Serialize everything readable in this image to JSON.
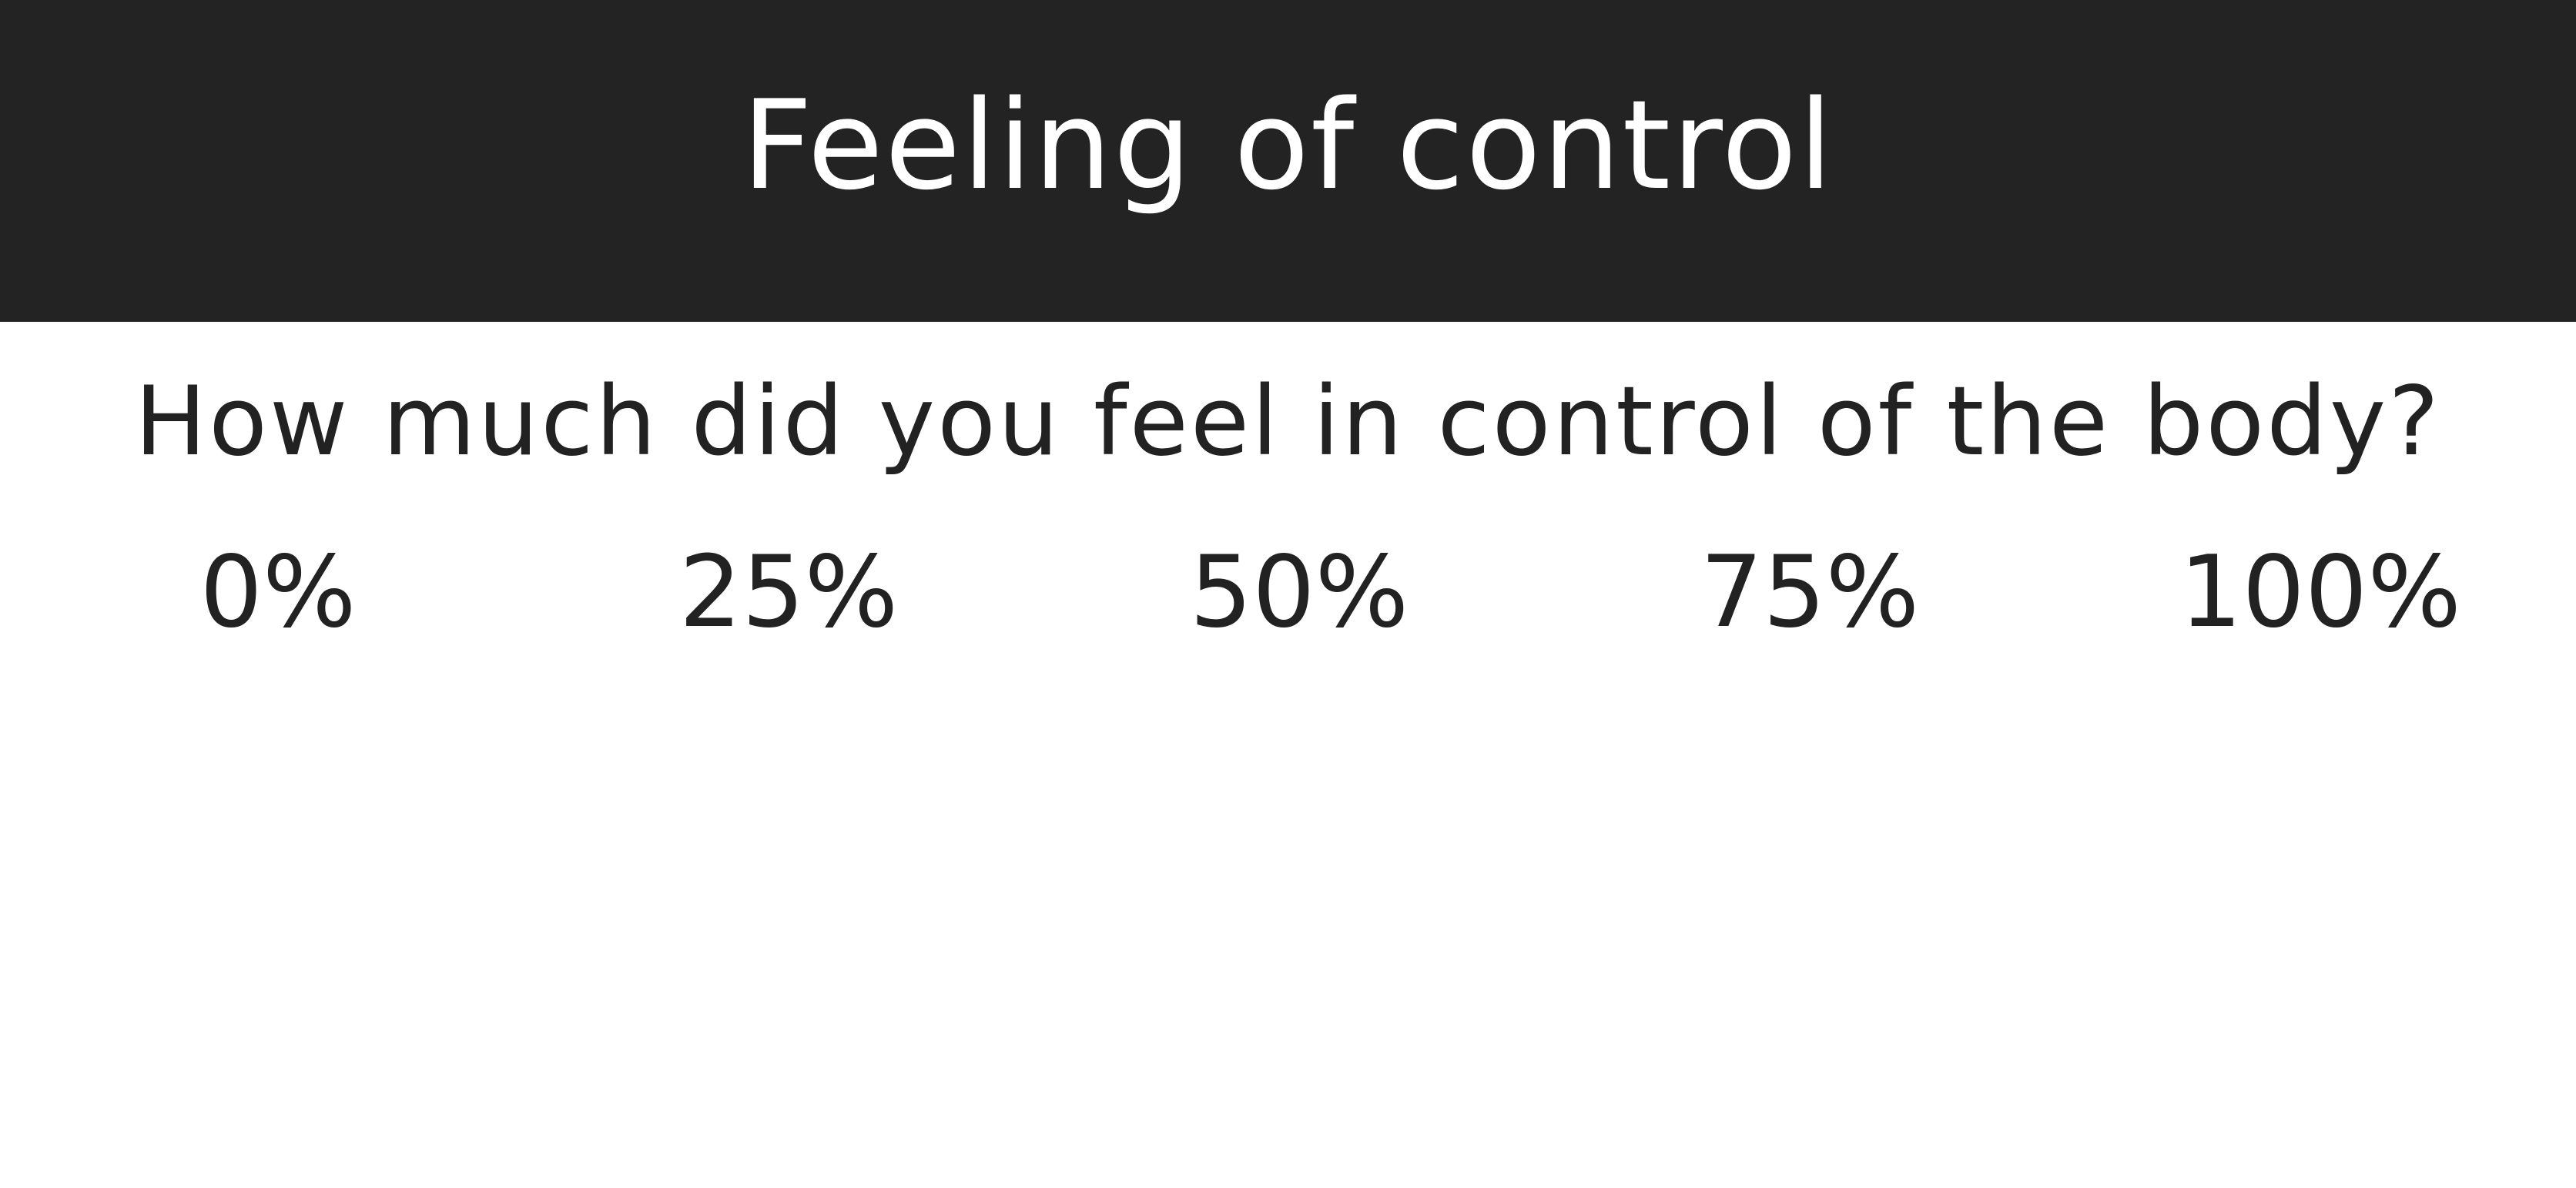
{
  "header": {
    "title": "Feeling of control"
  },
  "question": {
    "text": "How much did you feel in control of the body?"
  },
  "scale": {
    "options": [
      {
        "label": "0%"
      },
      {
        "label": "25%"
      },
      {
        "label": "50%"
      },
      {
        "label": "75%"
      },
      {
        "label": "100%"
      }
    ]
  },
  "colors": {
    "header_background": "#232323",
    "header_text": "#ffffff",
    "body_background": "#ffffff",
    "body_text": "#222222"
  }
}
